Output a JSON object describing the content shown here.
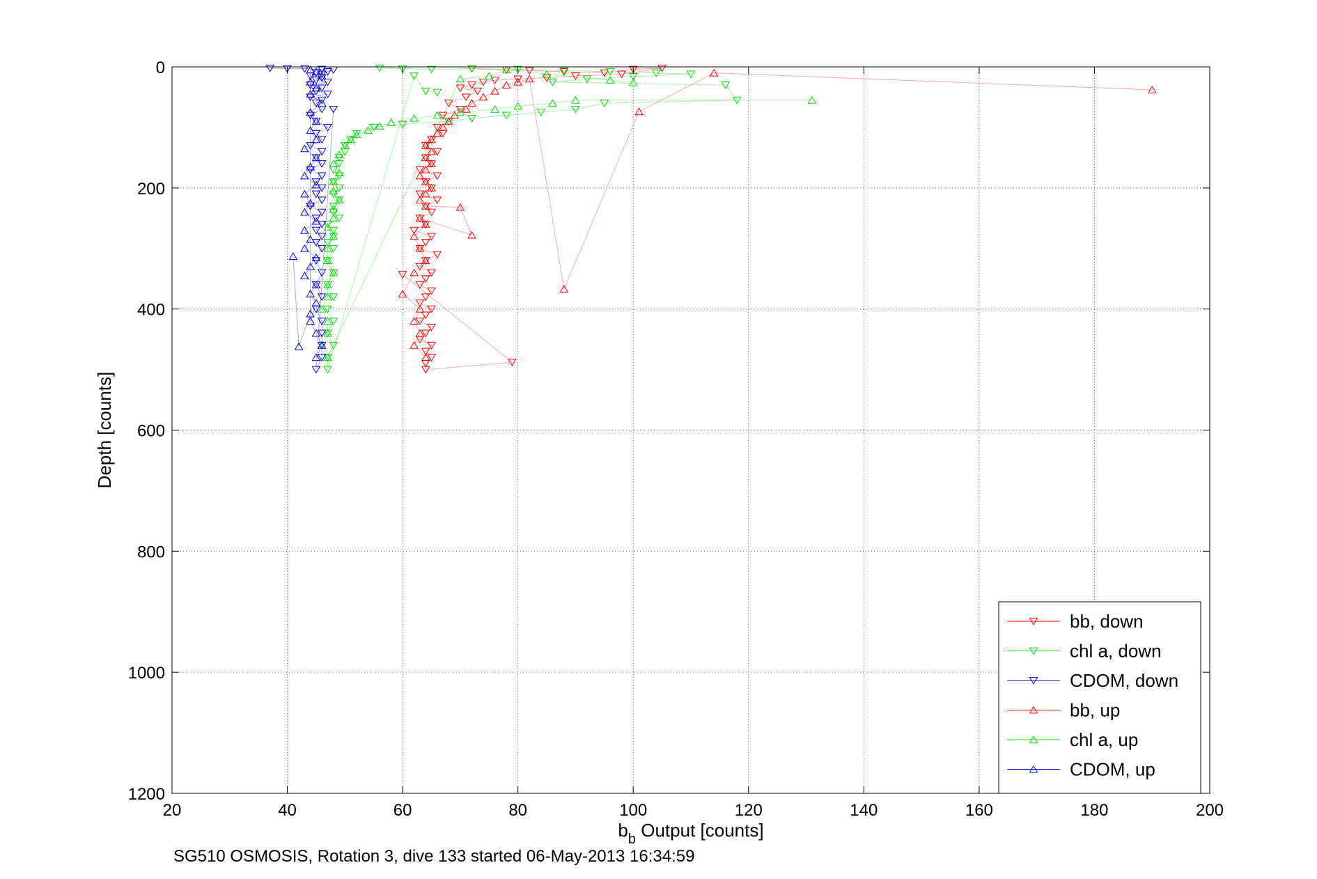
{
  "chart_data": {
    "type": "scatter",
    "xlabel_base": "b",
    "xlabel_sub": "b",
    "xlabel_rest": " Output [counts]",
    "ylabel": "Depth [counts]",
    "caption": "SG510 OSMOSIS, Rotation 3, dive 133 started 06-May-2013 16:34:59",
    "xlim": [
      20,
      200
    ],
    "ylim": [
      0,
      1200
    ],
    "y_reversed": true,
    "grid": true,
    "legend_position": "bottom-right",
    "x_ticks": [
      20,
      40,
      60,
      80,
      100,
      120,
      140,
      160,
      180,
      200
    ],
    "y_ticks": [
      0,
      200,
      400,
      600,
      800,
      1000,
      1200
    ],
    "series": [
      {
        "name": "bb, down",
        "color": "#ff0000",
        "marker": "triangle-down",
        "points": [
          [
            72,
            3
          ],
          [
            78,
            5
          ],
          [
            82,
            6
          ],
          [
            88,
            8
          ],
          [
            95,
            10
          ],
          [
            100,
            4
          ],
          [
            105,
            2
          ],
          [
            98,
            12
          ],
          [
            90,
            15
          ],
          [
            85,
            18
          ],
          [
            80,
            20
          ],
          [
            76,
            22
          ],
          [
            74,
            25
          ],
          [
            72,
            30
          ],
          [
            70,
            35
          ],
          [
            73,
            40
          ],
          [
            71,
            50
          ],
          [
            68,
            60
          ],
          [
            70,
            70
          ],
          [
            67,
            80
          ],
          [
            68,
            90
          ],
          [
            66,
            100
          ],
          [
            67,
            110
          ],
          [
            65,
            120
          ],
          [
            64,
            130
          ],
          [
            66,
            140
          ],
          [
            64,
            150
          ],
          [
            65,
            160
          ],
          [
            63,
            170
          ],
          [
            66,
            180
          ],
          [
            64,
            190
          ],
          [
            65,
            200
          ],
          [
            63,
            210
          ],
          [
            66,
            220
          ],
          [
            64,
            230
          ],
          [
            65,
            240
          ],
          [
            63,
            250
          ],
          [
            64,
            260
          ],
          [
            62,
            270
          ],
          [
            65,
            280
          ],
          [
            64,
            290
          ],
          [
            63,
            300
          ],
          [
            66,
            310
          ],
          [
            64,
            320
          ],
          [
            63,
            330
          ],
          [
            65,
            340
          ],
          [
            64,
            350
          ],
          [
            63,
            360
          ],
          [
            65,
            370
          ],
          [
            64,
            380
          ],
          [
            63,
            390
          ],
          [
            65,
            400
          ],
          [
            64,
            410
          ],
          [
            63,
            420
          ],
          [
            65,
            430
          ],
          [
            64,
            440
          ],
          [
            63,
            450
          ],
          [
            65,
            460
          ],
          [
            64,
            470
          ],
          [
            65,
            480
          ],
          [
            64,
            490
          ],
          [
            64,
            500
          ],
          [
            79,
            488
          ],
          [
            60,
            343
          ]
        ]
      },
      {
        "name": "chl a, down",
        "color": "#00dd00",
        "marker": "triangle-down",
        "points": [
          [
            56,
            2
          ],
          [
            60,
            3
          ],
          [
            65,
            4
          ],
          [
            72,
            3
          ],
          [
            80,
            4
          ],
          [
            88,
            6
          ],
          [
            96,
            8
          ],
          [
            104,
            10
          ],
          [
            110,
            12
          ],
          [
            100,
            16
          ],
          [
            92,
            20
          ],
          [
            86,
            25
          ],
          [
            116,
            30
          ],
          [
            118,
            55
          ],
          [
            95,
            60
          ],
          [
            90,
            70
          ],
          [
            84,
            75
          ],
          [
            78,
            80
          ],
          [
            72,
            85
          ],
          [
            68,
            90
          ],
          [
            60,
            95
          ],
          [
            55,
            100
          ],
          [
            52,
            110
          ],
          [
            51,
            120
          ],
          [
            50,
            130
          ],
          [
            50,
            140
          ],
          [
            49,
            150
          ],
          [
            49,
            160
          ],
          [
            48,
            170
          ],
          [
            49,
            180
          ],
          [
            48,
            190
          ],
          [
            49,
            200
          ],
          [
            48,
            210
          ],
          [
            49,
            220
          ],
          [
            48,
            230
          ],
          [
            48,
            240
          ],
          [
            49,
            250
          ],
          [
            47,
            260
          ],
          [
            48,
            270
          ],
          [
            48,
            280
          ],
          [
            47,
            290
          ],
          [
            48,
            300
          ],
          [
            47,
            320
          ],
          [
            48,
            340
          ],
          [
            47,
            360
          ],
          [
            48,
            380
          ],
          [
            47,
            400
          ],
          [
            48,
            420
          ],
          [
            47,
            440
          ],
          [
            48,
            460
          ],
          [
            47,
            480
          ],
          [
            47,
            500
          ],
          [
            62,
            15
          ],
          [
            64,
            40
          ],
          [
            66,
            42
          ]
        ]
      },
      {
        "name": "CDOM, down",
        "color": "#0000dd",
        "marker": "triangle-down",
        "points": [
          [
            37,
            2
          ],
          [
            40,
            3
          ],
          [
            43,
            3
          ],
          [
            46,
            4
          ],
          [
            48,
            5
          ],
          [
            47,
            8
          ],
          [
            45,
            10
          ],
          [
            46,
            12
          ],
          [
            44,
            15
          ],
          [
            46,
            18
          ],
          [
            45,
            22
          ],
          [
            47,
            25
          ],
          [
            44,
            30
          ],
          [
            46,
            35
          ],
          [
            45,
            40
          ],
          [
            47,
            45
          ],
          [
            44,
            50
          ],
          [
            46,
            55
          ],
          [
            45,
            60
          ],
          [
            46,
            70
          ],
          [
            44,
            80
          ],
          [
            45,
            90
          ],
          [
            47,
            100
          ],
          [
            45,
            110
          ],
          [
            46,
            120
          ],
          [
            44,
            130
          ],
          [
            46,
            140
          ],
          [
            45,
            150
          ],
          [
            46,
            160
          ],
          [
            44,
            170
          ],
          [
            46,
            180
          ],
          [
            45,
            190
          ],
          [
            46,
            200
          ],
          [
            45,
            210
          ],
          [
            46,
            220
          ],
          [
            44,
            230
          ],
          [
            46,
            240
          ],
          [
            45,
            250
          ],
          [
            46,
            260
          ],
          [
            45,
            270
          ],
          [
            46,
            280
          ],
          [
            45,
            290
          ],
          [
            46,
            300
          ],
          [
            45,
            320
          ],
          [
            46,
            340
          ],
          [
            45,
            360
          ],
          [
            46,
            380
          ],
          [
            45,
            400
          ],
          [
            46,
            420
          ],
          [
            46,
            440
          ],
          [
            46,
            460
          ],
          [
            46,
            480
          ],
          [
            45,
            500
          ],
          [
            48,
            70
          ]
        ]
      },
      {
        "name": "bb, up",
        "color": "#ff0000",
        "marker": "triangle-up",
        "points": [
          [
            190,
            38
          ],
          [
            114,
            10
          ],
          [
            101,
            74
          ],
          [
            88,
            367
          ],
          [
            82,
            20
          ],
          [
            80,
            25
          ],
          [
            78,
            30
          ],
          [
            76,
            40
          ],
          [
            74,
            50
          ],
          [
            72,
            60
          ],
          [
            71,
            70
          ],
          [
            69,
            80
          ],
          [
            68,
            90
          ],
          [
            67,
            100
          ],
          [
            66,
            110
          ],
          [
            65,
            120
          ],
          [
            64,
            130
          ],
          [
            65,
            140
          ],
          [
            64,
            150
          ],
          [
            65,
            160
          ],
          [
            64,
            170
          ],
          [
            63,
            180
          ],
          [
            64,
            190
          ],
          [
            65,
            200
          ],
          [
            64,
            210
          ],
          [
            63,
            220
          ],
          [
            64,
            230
          ],
          [
            70,
            232
          ],
          [
            72,
            278
          ],
          [
            63,
            250
          ],
          [
            64,
            260
          ],
          [
            62,
            280
          ],
          [
            63,
            300
          ],
          [
            64,
            320
          ],
          [
            62,
            340
          ],
          [
            60,
            375
          ],
          [
            63,
            400
          ],
          [
            62,
            420
          ],
          [
            63,
            440
          ],
          [
            62,
            460
          ],
          [
            64,
            480
          ]
        ]
      },
      {
        "name": "chl a, up",
        "color": "#00dd00",
        "marker": "triangle-up",
        "points": [
          [
            131,
            55
          ],
          [
            90,
            55
          ],
          [
            86,
            60
          ],
          [
            80,
            65
          ],
          [
            76,
            70
          ],
          [
            70,
            75
          ],
          [
            66,
            80
          ],
          [
            62,
            85
          ],
          [
            58,
            92
          ],
          [
            56,
            98
          ],
          [
            54,
            105
          ],
          [
            52,
            112
          ],
          [
            51,
            120
          ],
          [
            50,
            130
          ],
          [
            49,
            145
          ],
          [
            48,
            160
          ],
          [
            49,
            175
          ],
          [
            48,
            190
          ],
          [
            48,
            205
          ],
          [
            49,
            220
          ],
          [
            48,
            235
          ],
          [
            48,
            250
          ],
          [
            47,
            265
          ],
          [
            48,
            280
          ],
          [
            47,
            300
          ],
          [
            47,
            320
          ],
          [
            48,
            340
          ],
          [
            47,
            360
          ],
          [
            47,
            380
          ],
          [
            46,
            400
          ],
          [
            47,
            420
          ],
          [
            47,
            440
          ],
          [
            46,
            460
          ],
          [
            47,
            480
          ],
          [
            70,
            20
          ],
          [
            75,
            15
          ],
          [
            78,
            5
          ],
          [
            85,
            12
          ],
          [
            96,
            22
          ],
          [
            100,
            26
          ]
        ]
      },
      {
        "name": "CDOM, up",
        "color": "#0000dd",
        "marker": "triangle-up",
        "points": [
          [
            41,
            313
          ],
          [
            42,
            462
          ],
          [
            44,
            408
          ],
          [
            44,
            5
          ],
          [
            45,
            8
          ],
          [
            46,
            15
          ],
          [
            44,
            25
          ],
          [
            45,
            35
          ],
          [
            44,
            45
          ],
          [
            46,
            60
          ],
          [
            44,
            75
          ],
          [
            45,
            90
          ],
          [
            44,
            105
          ],
          [
            45,
            120
          ],
          [
            43,
            135
          ],
          [
            45,
            150
          ],
          [
            44,
            165
          ],
          [
            43,
            180
          ],
          [
            45,
            195
          ],
          [
            43,
            210
          ],
          [
            44,
            225
          ],
          [
            43,
            240
          ],
          [
            45,
            255
          ],
          [
            43,
            270
          ],
          [
            44,
            285
          ],
          [
            43,
            300
          ],
          [
            45,
            315
          ],
          [
            44,
            330
          ],
          [
            43,
            345
          ],
          [
            45,
            360
          ],
          [
            44,
            375
          ],
          [
            45,
            390
          ],
          [
            44,
            420
          ],
          [
            45,
            440
          ],
          [
            46,
            460
          ],
          [
            45,
            480
          ]
        ]
      }
    ]
  }
}
